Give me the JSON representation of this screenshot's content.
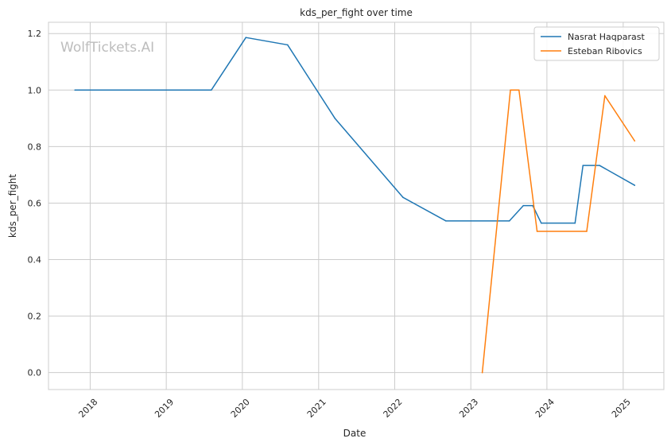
{
  "chart_data": {
    "type": "line",
    "title": "kds_per_fight over time",
    "xlabel": "Date",
    "ylabel": "kds_per_fight",
    "watermark": "WolfTickets.AI",
    "x_ticks": [
      "2018",
      "2019",
      "2020",
      "2021",
      "2022",
      "2023",
      "2024",
      "2025"
    ],
    "y_ticks": [
      "0.0",
      "0.2",
      "0.4",
      "0.6",
      "0.8",
      "1.0",
      "1.2"
    ],
    "xlim": [
      "2017-06-15",
      "2025-07-15"
    ],
    "ylim": [
      -0.06,
      1.24
    ],
    "grid": true,
    "legend_position": "top-right",
    "series": [
      {
        "name": "Nasrat Haqparast",
        "color": "#1f77b4",
        "points": [
          [
            "2017-10-20",
            1.0
          ],
          [
            "2019-08-05",
            1.0
          ],
          [
            "2020-01-18",
            1.186
          ],
          [
            "2020-08-05",
            1.16
          ],
          [
            "2021-03-20",
            0.9
          ],
          [
            "2022-02-10",
            0.62
          ],
          [
            "2022-09-03",
            0.537
          ],
          [
            "2023-07-05",
            0.537
          ],
          [
            "2023-09-10",
            0.591
          ],
          [
            "2023-10-25",
            0.591
          ],
          [
            "2023-12-05",
            0.529
          ],
          [
            "2024-05-15",
            0.529
          ],
          [
            "2024-06-22",
            0.733
          ],
          [
            "2024-09-10",
            0.733
          ],
          [
            "2025-02-25",
            0.663
          ]
        ]
      },
      {
        "name": "Esteban Ribovics",
        "color": "#ff7f0e",
        "points": [
          [
            "2023-02-25",
            0.0
          ],
          [
            "2023-07-10",
            1.0
          ],
          [
            "2023-08-20",
            1.0
          ],
          [
            "2023-11-15",
            0.5
          ],
          [
            "2024-07-10",
            0.5
          ],
          [
            "2024-10-05",
            0.98
          ],
          [
            "2025-02-25",
            0.82
          ]
        ]
      }
    ]
  }
}
